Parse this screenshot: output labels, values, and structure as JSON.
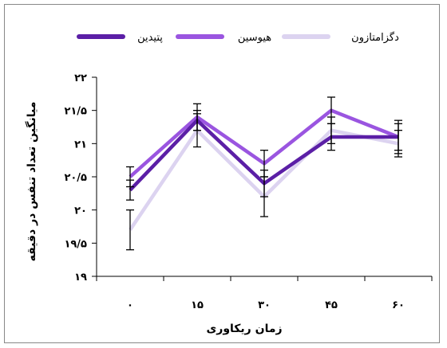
{
  "chart_data": {
    "type": "line",
    "xlabel": "زمان ریکاوری",
    "ylabel": "میانگین تعداد تنفس در دقیقه",
    "categories": [
      "۰",
      "۱۵",
      "۳۰",
      "۴۵",
      "۶۰"
    ],
    "ylim": [
      19,
      22
    ],
    "yticks": [
      19,
      19.5,
      20,
      20.5,
      21,
      21.5,
      22
    ],
    "ytick_labels": [
      "۱۹",
      "۱۹/۵",
      "۲۰",
      "۲۰/۵",
      "۲۱",
      "۲۱/۵",
      "۲۲"
    ],
    "grid": false,
    "legend_position": "top",
    "series": [
      {
        "name": "پتیدین",
        "color": "#5b1fa6",
        "values": [
          20.3,
          21.35,
          20.4,
          21.1,
          21.1
        ],
        "errors": [
          0.15,
          0.15,
          0.2,
          0.2,
          0.25
        ]
      },
      {
        "name": "هیوسین",
        "color": "#9a55e0",
        "values": [
          20.5,
          21.4,
          20.7,
          21.5,
          21.1
        ],
        "errors": [
          0.15,
          0.2,
          0.2,
          0.2,
          0.2
        ]
      },
      {
        "name": "دگزامتازون",
        "color": "#dcd3f0",
        "values": [
          19.7,
          21.2,
          20.2,
          21.2,
          21.0
        ],
        "errors": [
          0.3,
          0.25,
          0.3,
          0.2,
          0.2
        ]
      }
    ]
  }
}
